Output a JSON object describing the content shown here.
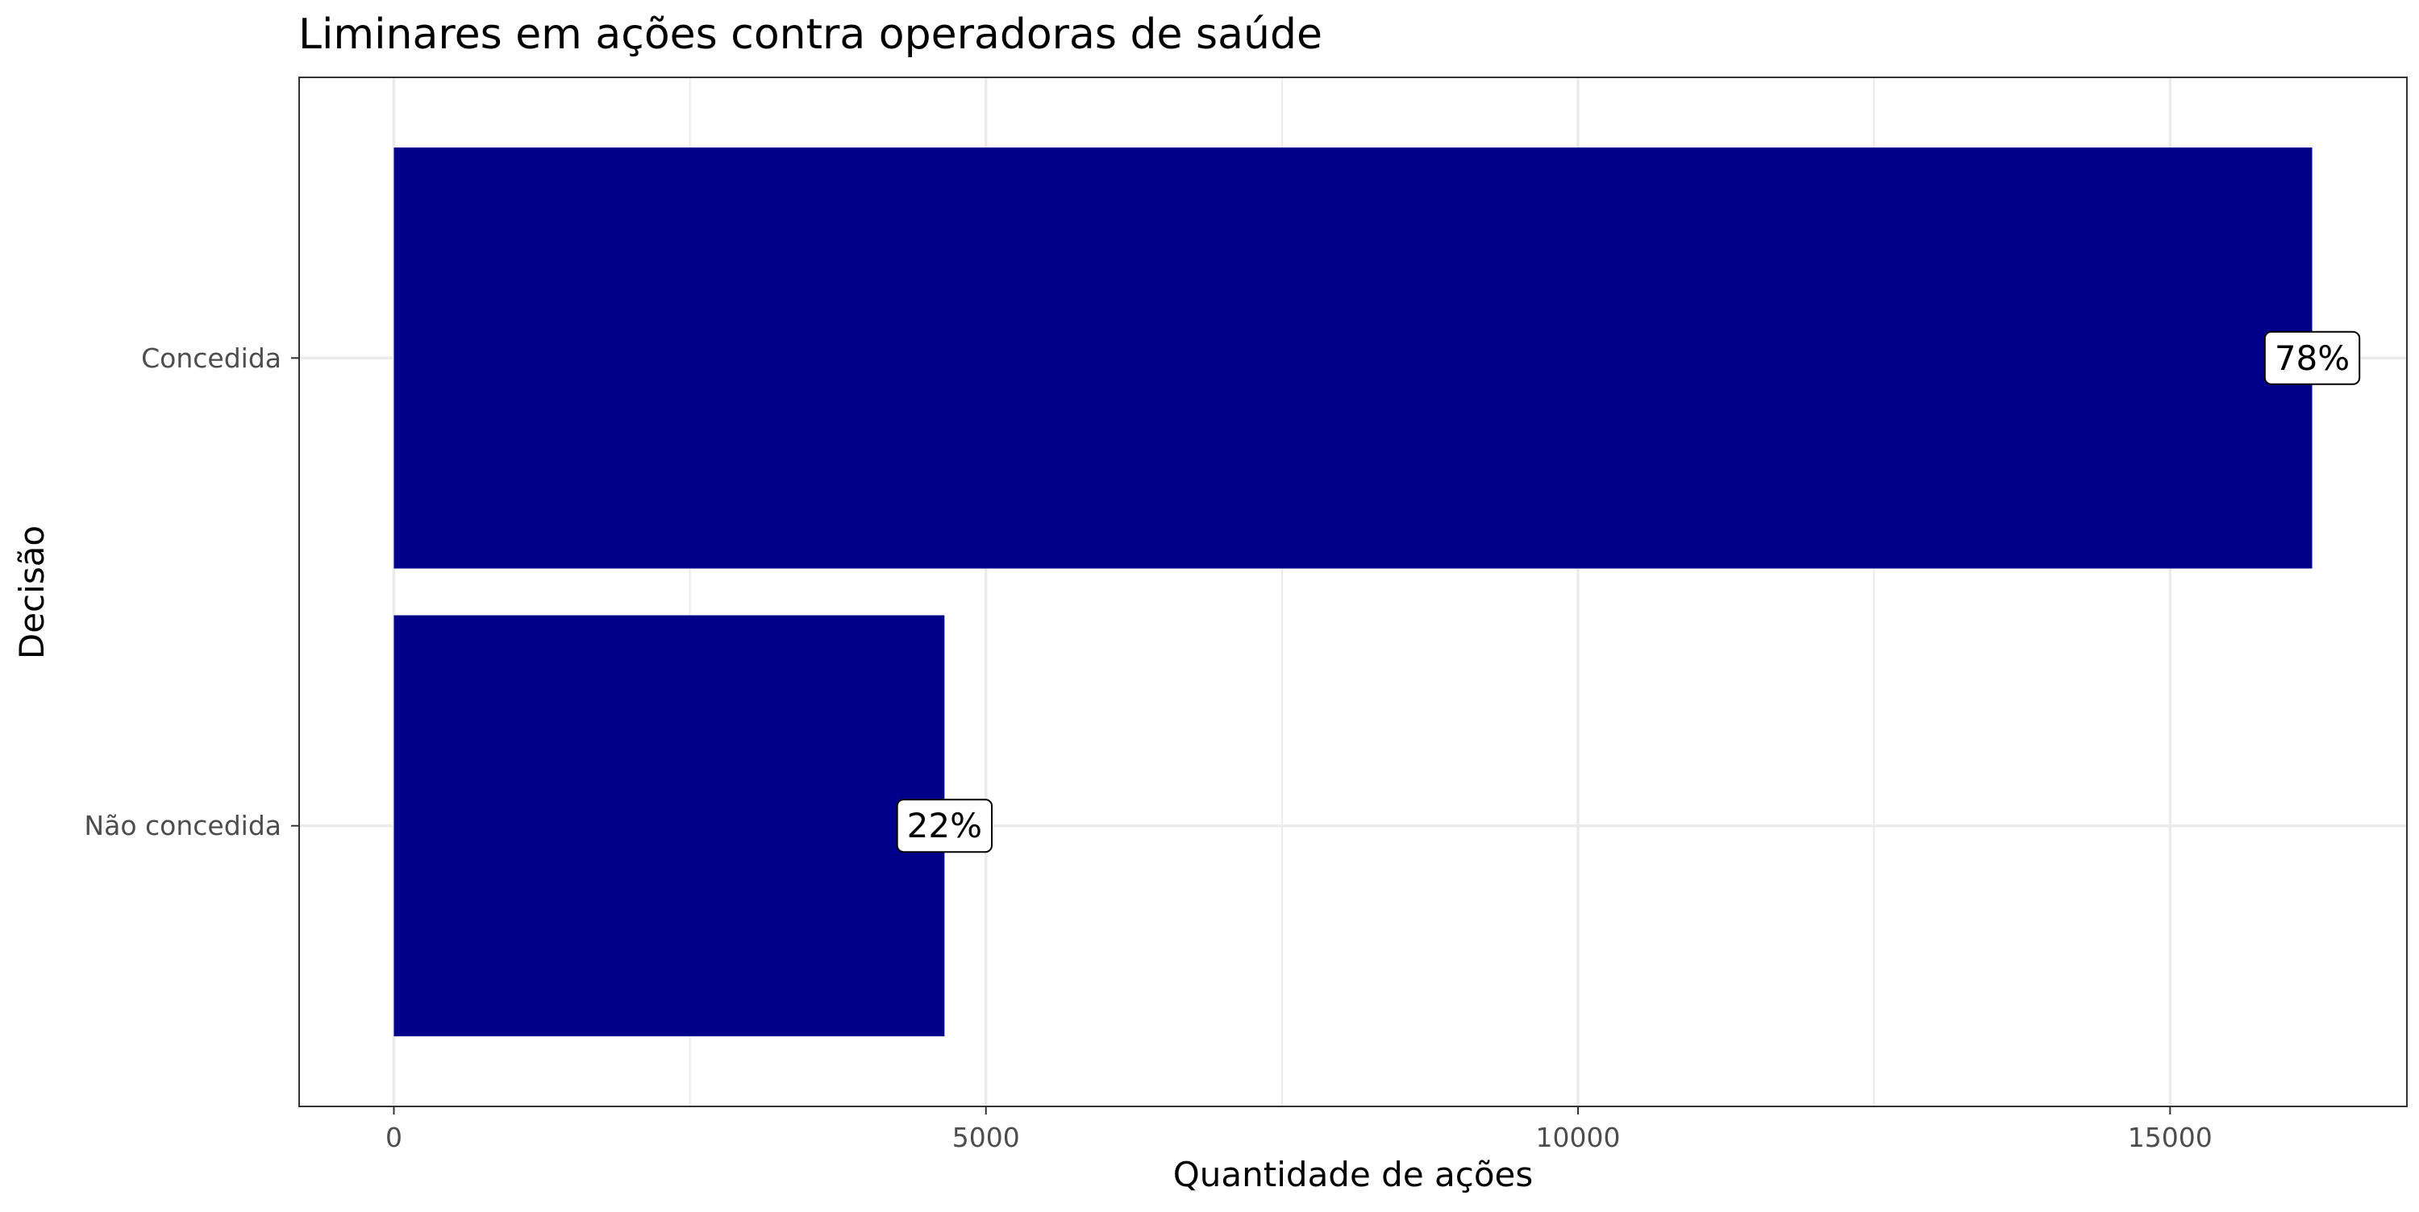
{
  "chart_data": {
    "type": "bar",
    "orientation": "horizontal",
    "title": "Liminares em ações contra operadoras de saúde",
    "xlabel": "Quantidade de ações",
    "ylabel": "Decisão",
    "categories": [
      "Concedida",
      "Não concedida"
    ],
    "values": [
      16200,
      4650
    ],
    "data_labels": [
      "78%",
      "22%"
    ],
    "xlim": [
      -800,
      17000
    ],
    "x_ticks": [
      0,
      5000,
      10000,
      15000
    ],
    "x_tick_labels": [
      "0",
      "5000",
      "10000",
      "15000"
    ],
    "grid": true,
    "legend": "none",
    "colors": {
      "bar": "#00008b",
      "panel_border": "#333333",
      "grid": "#ebebeb",
      "label_box_fill": "#ffffff",
      "label_box_border": "#000000"
    }
  }
}
